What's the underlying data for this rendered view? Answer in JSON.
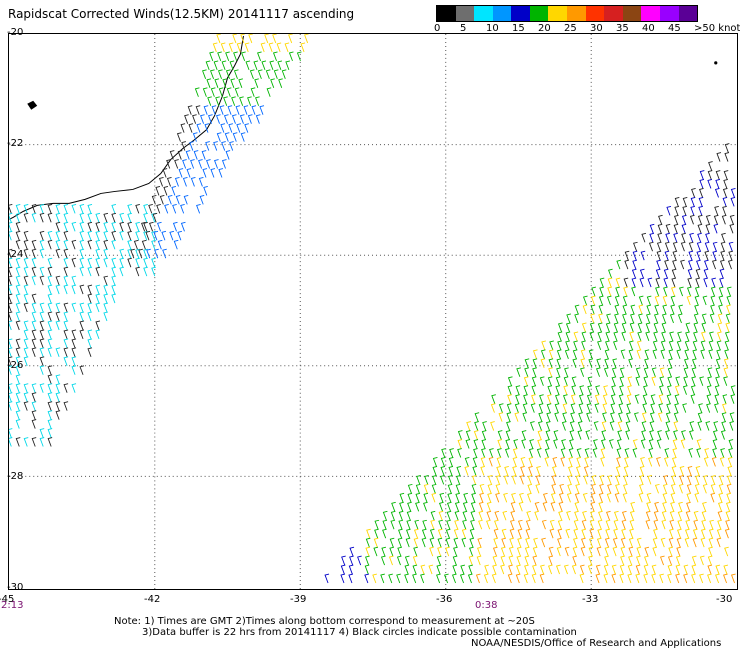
{
  "title": "Rapidscat Corrected Winds(12.5KM) 20141117 ascending",
  "legend": {
    "labels": [
      "0",
      "5",
      "10",
      "15",
      "20",
      "25",
      "30",
      "35",
      "40",
      "45",
      ">50 knots"
    ],
    "colors": [
      "#000000",
      "#6e6e6e",
      "#00e5ff",
      "#0096ff",
      "#0000c8",
      "#00b400",
      "#ffd700",
      "#ff9900",
      "#ff3300",
      "#d62020",
      "#8b4513",
      "#ff00ff",
      "#9900ff",
      "#5a0096"
    ]
  },
  "axes": {
    "lat_labels": [
      "-20",
      "-22",
      "-24",
      "-26",
      "-28",
      "-30"
    ],
    "lon_labels": [
      "-45",
      "-42",
      "-39",
      "-36",
      "-33",
      "-30"
    ]
  },
  "times": [
    "2:13",
    "0:38"
  ],
  "notes": [
    "Note: 1) Times are GMT 2)Times along bottom correspond to measurement at ~20S",
    "3)Data buffer is 22 hrs from 20141117 4) Black circles indicate possible contamination",
    "NOAA/NESDIS/Office of Research and Applications"
  ]
}
